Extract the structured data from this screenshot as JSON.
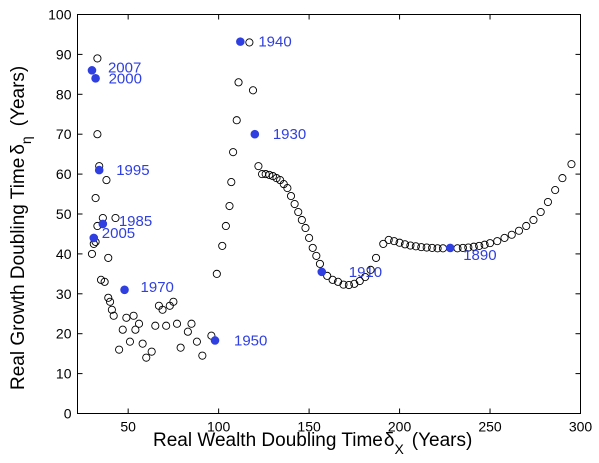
{
  "colors": {
    "highlight": "#2f3fe0",
    "open_marker": "#000000",
    "axis": "#000000",
    "background": "#ffffff"
  },
  "chart_data": {
    "type": "scatter",
    "title": "",
    "xlabel": {
      "text": "Real Wealth Doubling Time",
      "symbol": "δ",
      "subscript": "X",
      "unit": "(Years)"
    },
    "ylabel": {
      "text": "Real Growth Doubling Time",
      "symbol": "δ",
      "subscript": "η",
      "unit": "(Years)"
    },
    "xlim": [
      22,
      300
    ],
    "ylim": [
      0,
      100
    ],
    "xticks": [
      50,
      100,
      150,
      200,
      250,
      300
    ],
    "yticks": [
      0,
      10,
      20,
      30,
      40,
      50,
      60,
      70,
      80,
      90,
      100
    ],
    "grid": false,
    "legend": "none",
    "series": [
      {
        "marker": "open-circle",
        "points": [
          [
            30,
            40
          ],
          [
            31,
            42.5
          ],
          [
            32,
            43
          ],
          [
            32,
            54
          ],
          [
            33,
            47
          ],
          [
            34,
            62
          ],
          [
            33,
            70
          ],
          [
            33,
            89
          ],
          [
            35,
            33.5
          ],
          [
            36,
            49
          ],
          [
            37,
            33
          ],
          [
            38,
            58.5
          ],
          [
            39,
            39
          ],
          [
            39,
            29
          ],
          [
            40,
            28
          ],
          [
            41,
            26
          ],
          [
            42,
            24.5
          ],
          [
            43,
            49
          ],
          [
            45,
            16
          ],
          [
            47,
            21
          ],
          [
            49,
            24
          ],
          [
            51,
            18
          ],
          [
            53,
            24.5
          ],
          [
            54,
            21
          ],
          [
            56,
            22.5
          ],
          [
            58,
            17.5
          ],
          [
            60,
            14
          ],
          [
            63,
            15.5
          ],
          [
            65,
            22
          ],
          [
            67,
            27
          ],
          [
            69,
            26
          ],
          [
            71,
            22
          ],
          [
            73,
            27
          ],
          [
            75,
            28
          ],
          [
            77,
            22.5
          ],
          [
            79,
            16.5
          ],
          [
            83,
            20.5
          ],
          [
            85,
            22.5
          ],
          [
            88,
            18
          ],
          [
            91,
            14.5
          ],
          [
            96,
            19.5
          ],
          [
            99,
            35
          ],
          [
            102,
            42
          ],
          [
            104,
            47
          ],
          [
            106,
            52
          ],
          [
            107,
            58
          ],
          [
            108,
            65.5
          ],
          [
            110,
            73.5
          ],
          [
            111,
            83
          ],
          [
            117,
            93
          ],
          [
            119,
            81
          ],
          [
            122,
            62
          ],
          [
            124,
            60
          ],
          [
            126,
            60
          ],
          [
            128,
            59.8
          ],
          [
            130,
            59.5
          ],
          [
            132,
            59
          ],
          [
            134,
            58.5
          ],
          [
            136,
            57.5
          ],
          [
            138,
            56.5
          ],
          [
            140,
            54.5
          ],
          [
            142,
            52.5
          ],
          [
            144,
            50.5
          ],
          [
            146,
            48.5
          ],
          [
            148,
            46.5
          ],
          [
            150,
            44
          ],
          [
            152,
            41.5
          ],
          [
            154,
            39.5
          ],
          [
            156,
            37.5
          ],
          [
            160,
            34.5
          ],
          [
            163,
            33.5
          ],
          [
            166,
            33
          ],
          [
            169,
            32.3
          ],
          [
            172,
            32.2
          ],
          [
            175,
            32.5
          ],
          [
            178,
            33.2
          ],
          [
            181,
            34.2
          ],
          [
            184,
            36
          ],
          [
            187,
            39
          ],
          [
            191,
            42.5
          ],
          [
            194,
            43.5
          ],
          [
            197,
            43.2
          ],
          [
            200,
            42.8
          ],
          [
            203,
            42.4
          ],
          [
            206,
            42.1
          ],
          [
            209,
            41.9
          ],
          [
            212,
            41.7
          ],
          [
            215,
            41.6
          ],
          [
            218,
            41.5
          ],
          [
            221,
            41.4
          ],
          [
            224,
            41.4
          ],
          [
            232,
            41.4
          ],
          [
            235,
            41.5
          ],
          [
            238,
            41.6
          ],
          [
            241,
            41.8
          ],
          [
            244,
            42
          ],
          [
            247,
            42.3
          ],
          [
            250,
            42.7
          ],
          [
            254,
            43.2
          ],
          [
            258,
            44
          ],
          [
            262,
            44.8
          ],
          [
            266,
            45.8
          ],
          [
            270,
            47
          ],
          [
            274,
            48.5
          ],
          [
            278,
            50.5
          ],
          [
            282,
            53
          ],
          [
            286,
            56
          ],
          [
            290,
            59
          ],
          [
            295,
            62.5
          ]
        ]
      },
      {
        "marker": "filled-circle",
        "points": [
          {
            "x": 30,
            "y": 86,
            "label": "2007"
          },
          {
            "x": 32,
            "y": 84,
            "label": "2000"
          },
          {
            "x": 34,
            "y": 61,
            "label": "1995"
          },
          {
            "x": 36,
            "y": 47.5,
            "label": "1985"
          },
          {
            "x": 31,
            "y": 44,
            "label": "2005"
          },
          {
            "x": 48,
            "y": 31,
            "label": "1970"
          },
          {
            "x": 98,
            "y": 18.3,
            "label": "1950"
          },
          {
            "x": 112,
            "y": 93.2,
            "label": "1940"
          },
          {
            "x": 120,
            "y": 70,
            "label": "1930"
          },
          {
            "x": 157,
            "y": 35.5,
            "label": "1910"
          },
          {
            "x": 228,
            "y": 41.5,
            "label": "1890"
          }
        ]
      }
    ]
  }
}
